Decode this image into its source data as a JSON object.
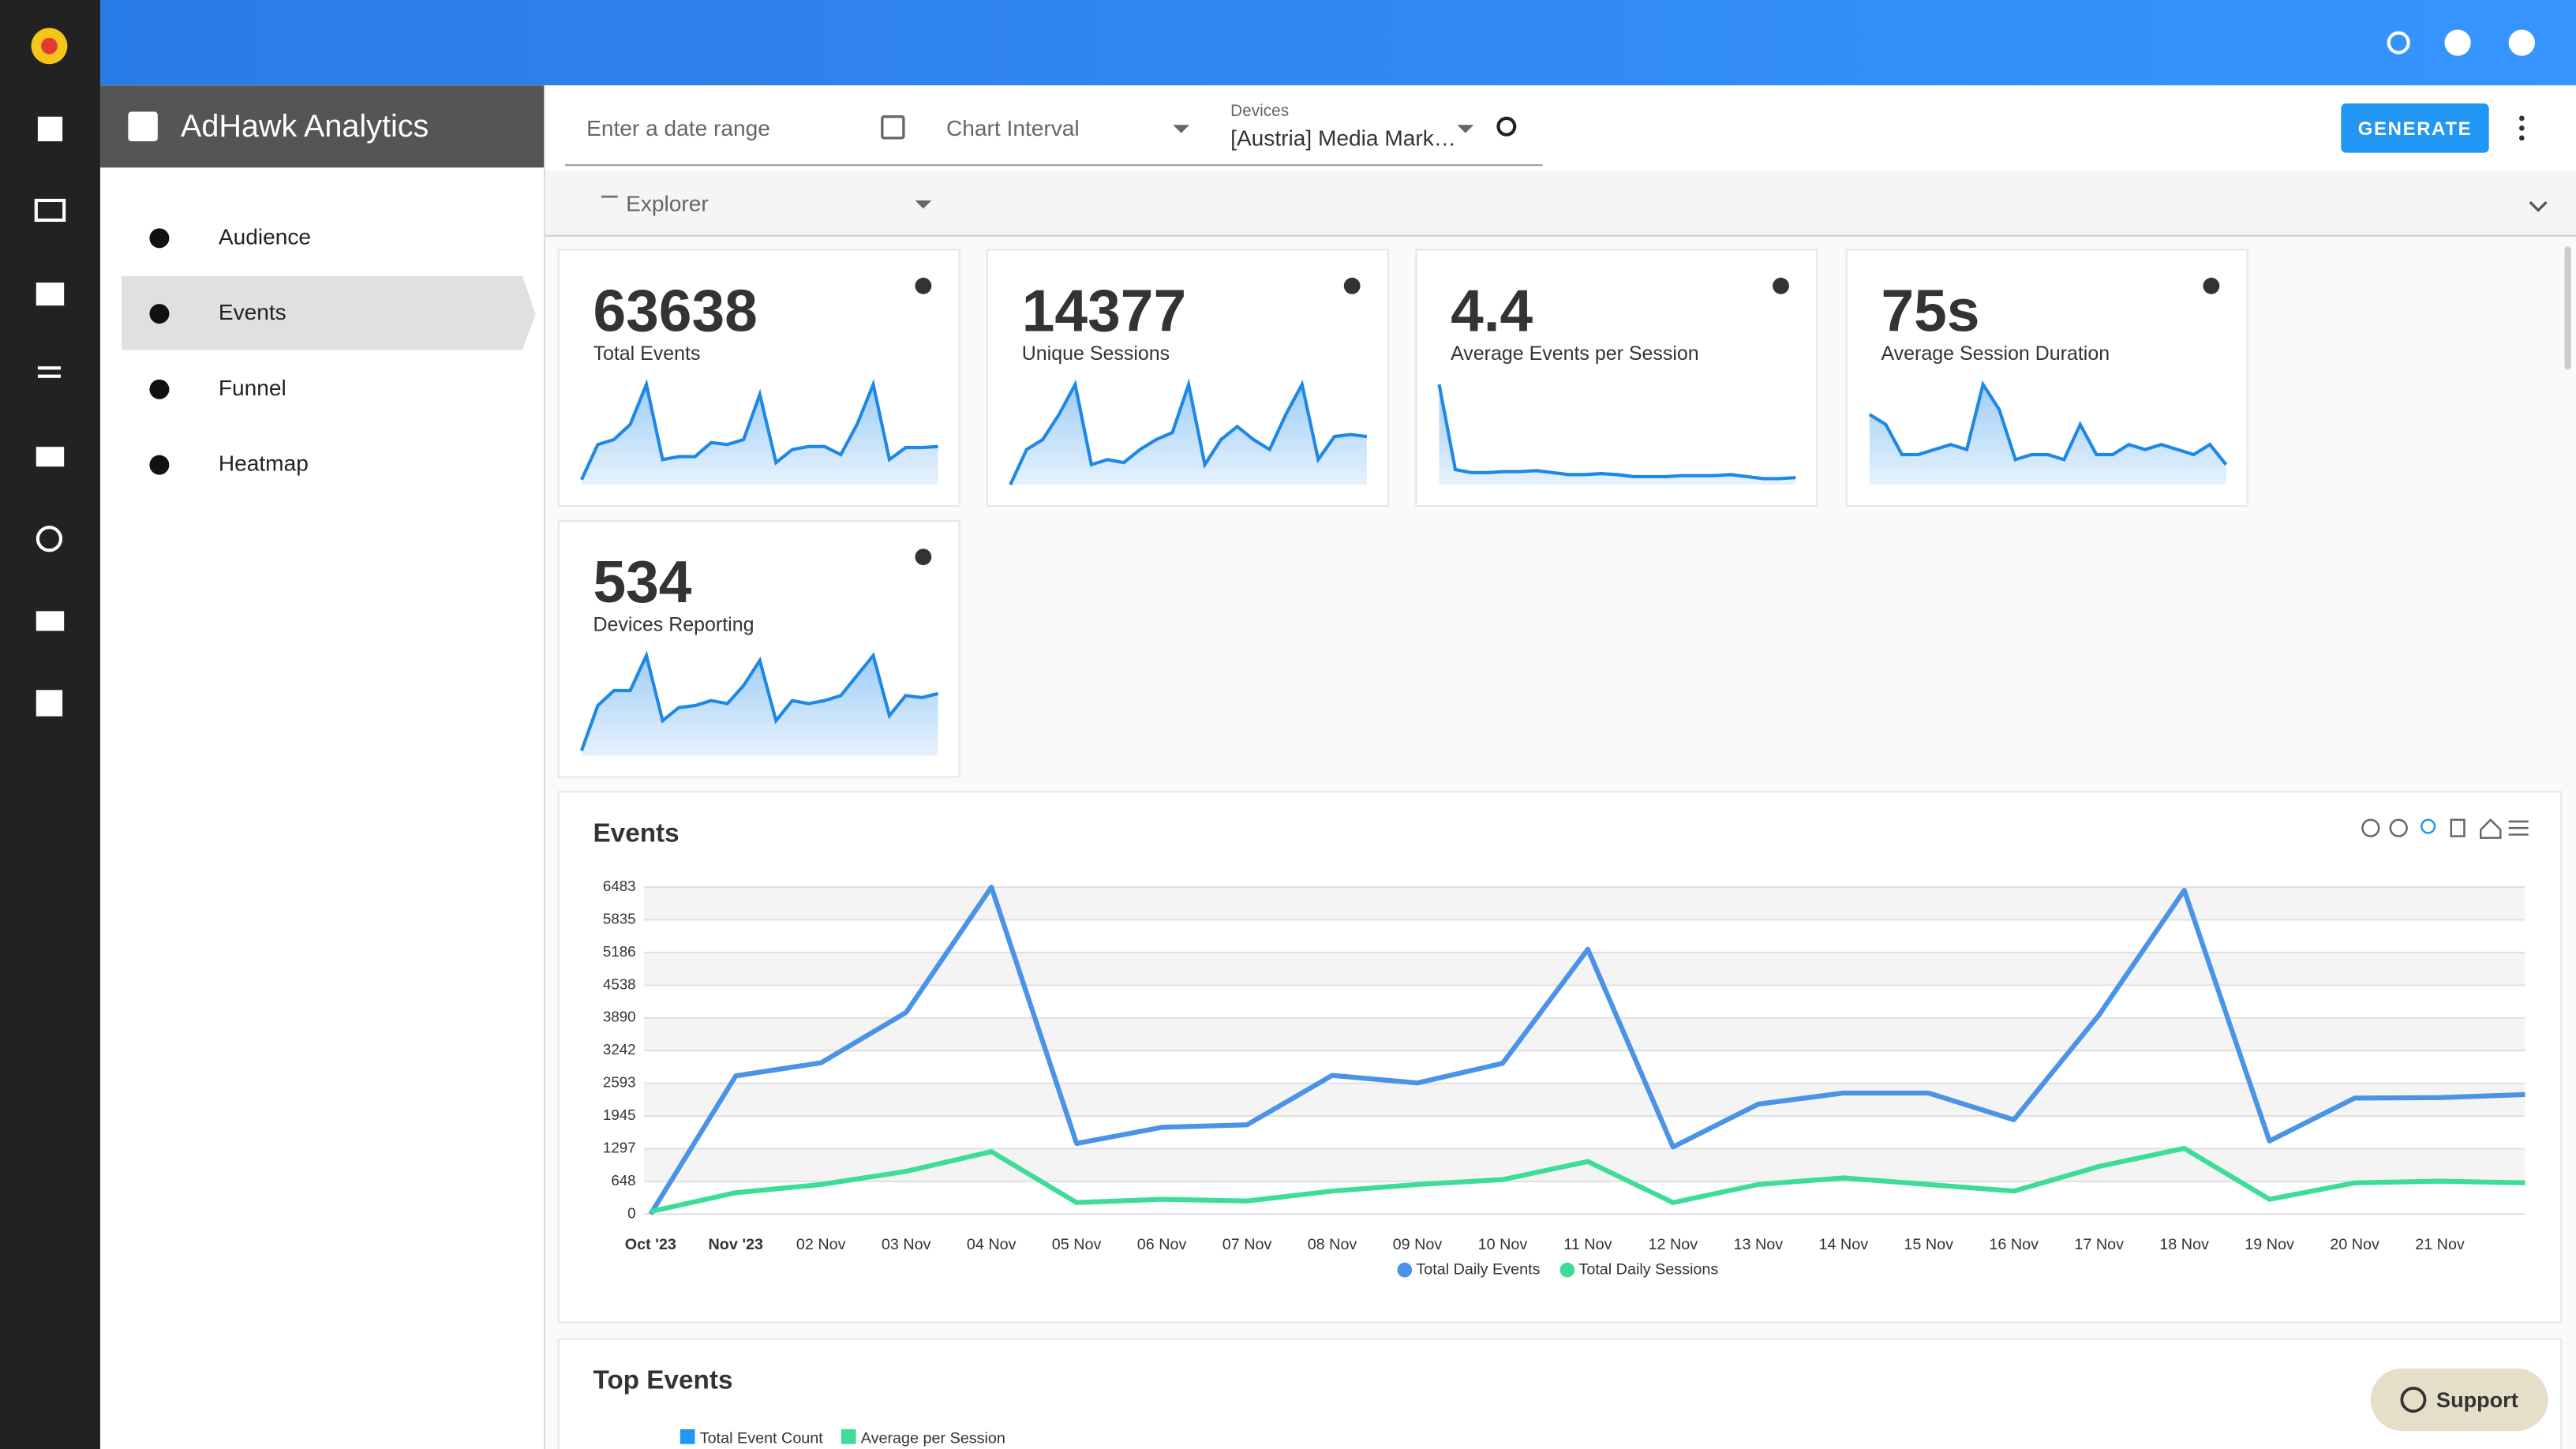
{
  "app": {
    "title": "AdHawk Analytics"
  },
  "toolbar": {
    "date_placeholder": "Enter a date range",
    "interval_placeholder": "Chart Interval",
    "devices_label": "Devices",
    "devices_value": "[Austria] Media Mark…",
    "generate": "GENERATE",
    "explorer": "Explorer"
  },
  "nav": [
    "Audience",
    "Events",
    "Funnel",
    "Heatmap"
  ],
  "kpis": [
    {
      "value": 63638,
      "label": "Total Events",
      "sparkline": [
        5,
        40,
        45,
        60,
        100,
        25,
        28,
        28,
        42,
        40,
        45,
        90,
        22,
        35,
        38,
        38,
        30,
        60,
        100,
        25,
        37,
        37,
        38
      ]
    },
    {
      "value": 14377,
      "label": "Unique Sessions",
      "sparkline": [
        0,
        35,
        45,
        70,
        100,
        20,
        25,
        22,
        35,
        45,
        52,
        100,
        20,
        45,
        58,
        45,
        35,
        70,
        100,
        25,
        48,
        50,
        48
      ]
    },
    {
      "value": 4.4,
      "label": "Average Events per Session",
      "sparkline": [
        100,
        15,
        12,
        12,
        13,
        13,
        14,
        12,
        10,
        10,
        11,
        10,
        8,
        8,
        8,
        9,
        9,
        9,
        10,
        8,
        6,
        6,
        7
      ]
    },
    {
      "value": "75s",
      "label": "Average Session Duration",
      "sparkline": [
        70,
        60,
        30,
        30,
        35,
        40,
        35,
        100,
        75,
        25,
        30,
        30,
        25,
        60,
        30,
        30,
        40,
        35,
        40,
        35,
        30,
        40,
        20
      ]
    },
    {
      "value": 534,
      "label": "Devices Reporting",
      "sparkline": [
        5,
        50,
        65,
        65,
        100,
        35,
        48,
        50,
        55,
        52,
        70,
        95,
        35,
        55,
        52,
        55,
        60,
        80,
        100,
        40,
        60,
        58,
        62
      ]
    }
  ],
  "chart_data": {
    "type": "line",
    "title": "Events",
    "categories": [
      "Oct '23",
      "Nov '23",
      "02 Nov",
      "03 Nov",
      "04 Nov",
      "05 Nov",
      "06 Nov",
      "07 Nov",
      "08 Nov",
      "09 Nov",
      "10 Nov",
      "11 Nov",
      "12 Nov",
      "13 Nov",
      "14 Nov",
      "15 Nov",
      "16 Nov",
      "17 Nov",
      "18 Nov",
      "19 Nov",
      "20 Nov",
      "21 Nov",
      null
    ],
    "series": [
      {
        "name": "Total Daily Events",
        "color": "#4a93e6",
        "values": [
          0,
          2740,
          3000,
          4000,
          6483,
          1400,
          1720,
          1770,
          2750,
          2600,
          2990,
          5250,
          1330,
          2180,
          2400,
          2400,
          1870,
          3950,
          6420,
          1450,
          2300,
          2310,
          2370
        ]
      },
      {
        "name": "Total Daily Sessions",
        "color": "#3ddc97",
        "values": [
          50,
          424,
          586,
          847,
          1238,
          228,
          293,
          260,
          456,
          586,
          684,
          1042,
          228,
          586,
          717,
          586,
          456,
          945,
          1303,
          293,
          619,
          652,
          619
        ]
      }
    ],
    "ylim": [
      0,
      6483
    ],
    "yticks": [
      0,
      648,
      1297,
      1945,
      2593,
      3242,
      3890,
      4538,
      5186,
      5835,
      6483
    ],
    "grid": true
  },
  "top_events": {
    "title": "Top Events",
    "legend": [
      {
        "name": "Total Event Count",
        "color": "#2196f3"
      },
      {
        "name": "Average per Session",
        "color": "#3ddc97"
      }
    ]
  },
  "support": "Support"
}
